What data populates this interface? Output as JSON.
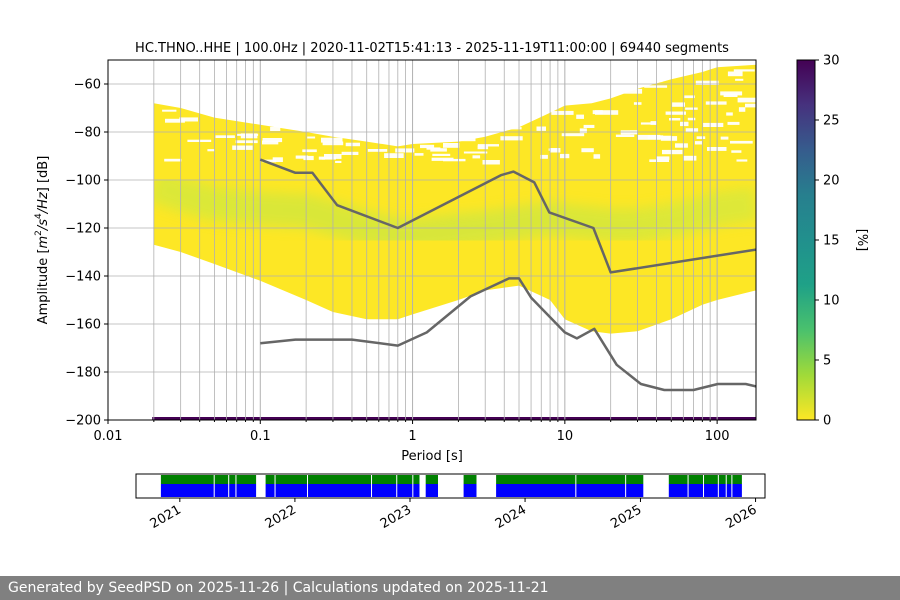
{
  "chart_data": [
    {
      "type": "heatmap",
      "title": "HC.THNO..HHE | 100.0Hz | 2020-11-02T15:41:13 - 2025-11-19T11:00:00 | 69440 segments",
      "xlabel": "Period [s]",
      "ylabel_parts": [
        "Amplitude [",
        "m",
        "2",
        "/s",
        "4",
        "/Hz",
        "] [dB]"
      ],
      "x_scale": "log",
      "xlim": [
        0.01,
        180
      ],
      "ylim": [
        -200,
        -50
      ],
      "x_ticks": [
        {
          "value": 0.01,
          "label": "0.01"
        },
        {
          "value": 0.1,
          "label": "0.1"
        },
        {
          "value": 1,
          "label": "1"
        },
        {
          "value": 10,
          "label": "10"
        },
        {
          "value": 100,
          "label": "100"
        }
      ],
      "y_ticks": [
        {
          "value": -60,
          "label": "−60"
        },
        {
          "value": -80,
          "label": "−80"
        },
        {
          "value": -100,
          "label": "−100"
        },
        {
          "value": -120,
          "label": "−120"
        },
        {
          "value": -140,
          "label": "−140"
        },
        {
          "value": -160,
          "label": "−160"
        },
        {
          "value": -180,
          "label": "−180"
        },
        {
          "value": -200,
          "label": "−200"
        }
      ],
      "grid": true,
      "colorbar": {
        "label": "[%]",
        "range": [
          0,
          30
        ],
        "ticks": [
          {
            "value": 0,
            "label": "0"
          },
          {
            "value": 5,
            "label": "5"
          },
          {
            "value": 10,
            "label": "10"
          },
          {
            "value": 15,
            "label": "15"
          },
          {
            "value": 20,
            "label": "20"
          },
          {
            "value": 25,
            "label": "25"
          },
          {
            "value": 30,
            "label": "30"
          }
        ],
        "colormap": "viridis_r"
      },
      "psd_band": {
        "period": [
          0.02,
          0.03,
          0.05,
          0.1,
          0.2,
          0.3,
          0.5,
          0.8,
          1,
          2,
          3,
          5,
          8,
          10,
          15,
          20,
          30,
          50,
          80,
          100,
          180
        ],
        "upper_db": [
          -68,
          -70,
          -74,
          -77,
          -80,
          -82,
          -84,
          -86,
          -85,
          -84,
          -82,
          -78,
          -72,
          -69,
          -68,
          -66,
          -62,
          -58,
          -55,
          -53,
          -52
        ],
        "lower_db": [
          -127,
          -130,
          -135,
          -142,
          -150,
          -155,
          -158,
          -158,
          -156,
          -150,
          -146,
          -144,
          -150,
          -158,
          -163,
          -164,
          -163,
          -158,
          -152,
          -150,
          -146
        ],
        "mode_db": [
          -102,
          -106,
          -110,
          -112,
          -113,
          -116,
          -120,
          -123,
          -123,
          -121,
          -120,
          -118,
          -116,
          -117,
          -118,
          -119,
          -119,
          -117,
          -114,
          -112,
          -110
        ]
      },
      "series": [
        {
          "x": [
            0.1,
            0.17,
            0.22,
            0.32,
            0.8,
            3.8,
            4.6,
            6.3,
            7.9,
            15.4,
            20,
            180
          ],
          "y": [
            -91.5,
            -97.0,
            -97.0,
            -110.5,
            -120.0,
            -98.0,
            -96.5,
            -101.0,
            -113.5,
            -120.0,
            -138.5,
            -129.0
          ],
          "color": "#666666"
        },
        {
          "x": [
            0.1,
            0.17,
            0.4,
            0.8,
            1.24,
            2.4,
            4.3,
            5.0,
            6.0,
            10.0,
            12.0,
            15.6,
            21.9,
            31.6,
            45.0,
            70.0,
            101.0,
            154.0,
            180.0
          ],
          "y": [
            -168.0,
            -166.5,
            -166.5,
            -169.0,
            -163.5,
            -148.5,
            -141.0,
            -141.0,
            -149.0,
            -163.5,
            -166.0,
            -162.0,
            -177.0,
            -185.0,
            -187.5,
            -187.5,
            -185.0,
            -185.0,
            -186.0
          ],
          "color": "#666666"
        }
      ]
    },
    {
      "type": "timeline",
      "xlim": [
        "2020-08-15",
        "2026-01-31"
      ],
      "x_ticks": [
        "2021",
        "2022",
        "2023",
        "2024",
        "2025",
        "2026"
      ],
      "colors": {
        "top": "#008000",
        "bottom": "#0000ff"
      },
      "available": [
        [
          "2020-11-02",
          "2021-08-31"
        ],
        [
          "2021-09-30",
          "2023-01-31"
        ],
        [
          "2023-02-20",
          "2023-03-31"
        ],
        [
          "2023-06-20",
          "2023-07-31"
        ],
        [
          "2023-10-01",
          "2025-01-10"
        ],
        [
          "2025-04-01",
          "2025-11-19"
        ]
      ],
      "gaps": [
        "2021-04-20",
        "2021-06-05",
        "2021-06-28",
        "2021-10-30",
        "2022-02-10",
        "2022-09-01",
        "2022-11-20",
        "2023-01-10",
        "2024-06-10",
        "2024-11-15",
        "2025-06-01",
        "2025-07-20",
        "2025-09-05",
        "2025-09-30",
        "2025-10-18"
      ]
    }
  ],
  "footer": "Generated by SeedPSD on 2025-11-26 | Calculations updated on 2025-11-21"
}
